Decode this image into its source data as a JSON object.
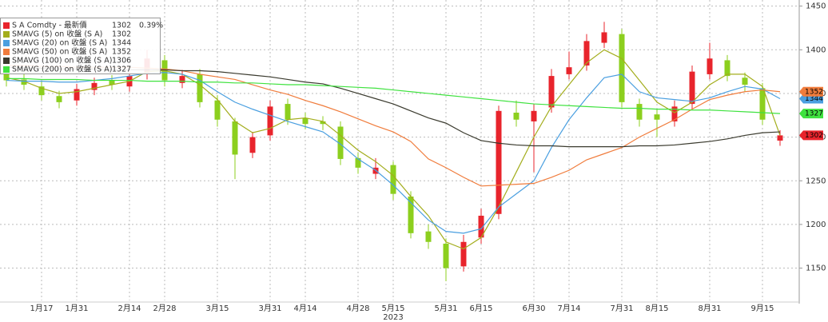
{
  "chart_data": {
    "type": "candlestick",
    "ylim": [
      1113,
      1457
    ],
    "yticks": [
      1150,
      1200,
      1250,
      1300,
      1350,
      1400,
      1450
    ],
    "grid": true,
    "categories": [
      null,
      null,
      "1月17",
      null,
      "1月31",
      null,
      null,
      "2月14",
      null,
      "2月28",
      null,
      null,
      "3月15",
      null,
      null,
      "3月31",
      null,
      "4月14",
      null,
      null,
      "4月28",
      null,
      "5月15",
      null,
      null,
      "5月31",
      null,
      "6月15",
      null,
      null,
      "6月30",
      null,
      "7月14",
      null,
      null,
      "7月31",
      null,
      "8月15",
      null,
      null,
      "8月31",
      null,
      null,
      "9月15",
      null
    ],
    "x_sublabels": [
      null,
      null,
      null,
      null,
      null,
      null,
      null,
      null,
      null,
      null,
      null,
      null,
      null,
      null,
      null,
      null,
      null,
      null,
      null,
      null,
      null,
      null,
      "2023",
      null,
      null,
      null,
      null,
      null,
      null,
      null,
      null,
      null,
      null,
      null,
      null,
      null,
      null,
      null,
      null,
      null,
      null,
      null,
      null,
      null,
      null
    ],
    "candles": {
      "name": "S A Comdty - 最新價",
      "up_color": "#e8242c",
      "down_color": "#8ccf1e",
      "last_label": "1302",
      "change": {
        "value": 0.39,
        "label": "0.39%"
      },
      "open": [
        1372,
        1366,
        1358,
        1347,
        1342,
        1354,
        1365,
        1358,
        1372,
        1388,
        1362,
        1372,
        1342,
        1318,
        1282,
        1302,
        1338,
        1322,
        1318,
        1312,
        1276,
        1258,
        1268,
        1232,
        1192,
        1178,
        1152,
        1185,
        1212,
        1328,
        1318,
        1334,
        1372,
        1382,
        1408,
        1418,
        1338,
        1326,
        1318,
        1338,
        1372,
        1388,
        1368,
        1356,
        1296
      ],
      "high": [
        1379,
        1372,
        1364,
        1353,
        1361,
        1368,
        1371,
        1376,
        1400,
        1394,
        1377,
        1378,
        1348,
        1322,
        1306,
        1342,
        1344,
        1328,
        1324,
        1318,
        1282,
        1276,
        1272,
        1238,
        1200,
        1184,
        1188,
        1218,
        1336,
        1342,
        1338,
        1378,
        1398,
        1418,
        1432,
        1424,
        1344,
        1332,
        1342,
        1382,
        1408,
        1394,
        1374,
        1362,
        1308
      ],
      "low": [
        1358,
        1354,
        1342,
        1333,
        1336,
        1348,
        1354,
        1352,
        1366,
        1358,
        1356,
        1334,
        1312,
        1252,
        1276,
        1296,
        1314,
        1309,
        1308,
        1268,
        1258,
        1252,
        1228,
        1184,
        1172,
        1135,
        1146,
        1178,
        1206,
        1312,
        1260,
        1328,
        1366,
        1376,
        1402,
        1334,
        1312,
        1300,
        1312,
        1332,
        1366,
        1364,
        1352,
        1314,
        1290
      ],
      "close": [
        1365,
        1360,
        1348,
        1340,
        1355,
        1362,
        1360,
        1370,
        1390,
        1365,
        1370,
        1340,
        1320,
        1280,
        1300,
        1335,
        1320,
        1315,
        1315,
        1275,
        1265,
        1265,
        1235,
        1190,
        1180,
        1150,
        1180,
        1210,
        1330,
        1320,
        1330,
        1370,
        1380,
        1410,
        1420,
        1340,
        1320,
        1320,
        1335,
        1375,
        1390,
        1370,
        1360,
        1320,
        1302
      ]
    },
    "series": [
      {
        "name": "SMAVG (5)  on 收盤 (S A)",
        "color": "#a3ad1c",
        "last_label": "1302",
        "tag": false,
        "values": [
          1368,
          1364,
          1356,
          1350,
          1352,
          1356,
          1360,
          1364,
          1375,
          1376,
          1372,
          1360,
          1343,
          1318,
          1305,
          1310,
          1320,
          1322,
          1318,
          1302,
          1285,
          1272,
          1256,
          1232,
          1210,
          1180,
          1172,
          1185,
          1220,
          1260,
          1300,
          1335,
          1360,
          1385,
          1400,
          1390,
          1365,
          1340,
          1328,
          1340,
          1360,
          1372,
          1372,
          1358,
          1302
        ]
      },
      {
        "name": "SMAVG (20)  on 收盤 (S A)",
        "color": "#4a9fe0",
        "last_label": "1344",
        "tag": true,
        "values": [
          1365,
          1364,
          1364,
          1363,
          1363,
          1365,
          1367,
          1370,
          1373,
          1374,
          1372,
          1365,
          1352,
          1340,
          1332,
          1325,
          1318,
          1312,
          1306,
          1292,
          1275,
          1262,
          1245,
          1225,
          1205,
          1192,
          1190,
          1195,
          1220,
          1235,
          1250,
          1288,
          1320,
          1345,
          1368,
          1372,
          1352,
          1345,
          1343,
          1341,
          1345,
          1352,
          1358,
          1355,
          1344
        ]
      },
      {
        "name": "SMAVG (50)  on 收盤 (S A)",
        "color": "#f07c3c",
        "last_label": "1352",
        "tag": true,
        "values": [
          1382,
          1382,
          1381,
          1381,
          1380,
          1380,
          1380,
          1380,
          1379,
          1378,
          1376,
          1372,
          1369,
          1366,
          1360,
          1354,
          1349,
          1342,
          1336,
          1329,
          1321,
          1313,
          1306,
          1295,
          1275,
          1265,
          1254,
          1244,
          1245,
          1246,
          1247,
          1254,
          1262,
          1274,
          1281,
          1288,
          1300,
          1310,
          1320,
          1332,
          1343,
          1348,
          1352,
          1354,
          1352
        ]
      },
      {
        "name": "SMAVG (100)  on 收盤 (S A)",
        "color": "#3a3a2e",
        "last_label": "1306",
        "tag": false,
        "values": [
          1380,
          1379,
          1379,
          1378,
          1378,
          1378,
          1377,
          1377,
          1377,
          1377,
          1376,
          1376,
          1375,
          1373,
          1371,
          1369,
          1366,
          1363,
          1361,
          1356,
          1350,
          1344,
          1338,
          1330,
          1322,
          1316,
          1305,
          1296,
          1293,
          1291,
          1290,
          1290,
          1289,
          1289,
          1289,
          1289,
          1290,
          1290,
          1291,
          1293,
          1295,
          1298,
          1302,
          1305,
          1306
        ]
      },
      {
        "name": "SMAVG (200)  on 收盤 (S A)",
        "color": "#3fe23f",
        "last_label": "1327",
        "tag": true,
        "values": [
          1367,
          1367,
          1366,
          1366,
          1366,
          1365,
          1365,
          1365,
          1364,
          1364,
          1364,
          1363,
          1363,
          1362,
          1362,
          1361,
          1360,
          1360,
          1359,
          1358,
          1357,
          1356,
          1354,
          1352,
          1350,
          1348,
          1346,
          1344,
          1342,
          1340,
          1338,
          1337,
          1336,
          1335,
          1334,
          1333,
          1333,
          1332,
          1332,
          1331,
          1331,
          1330,
          1329,
          1328,
          1327
        ]
      }
    ]
  }
}
